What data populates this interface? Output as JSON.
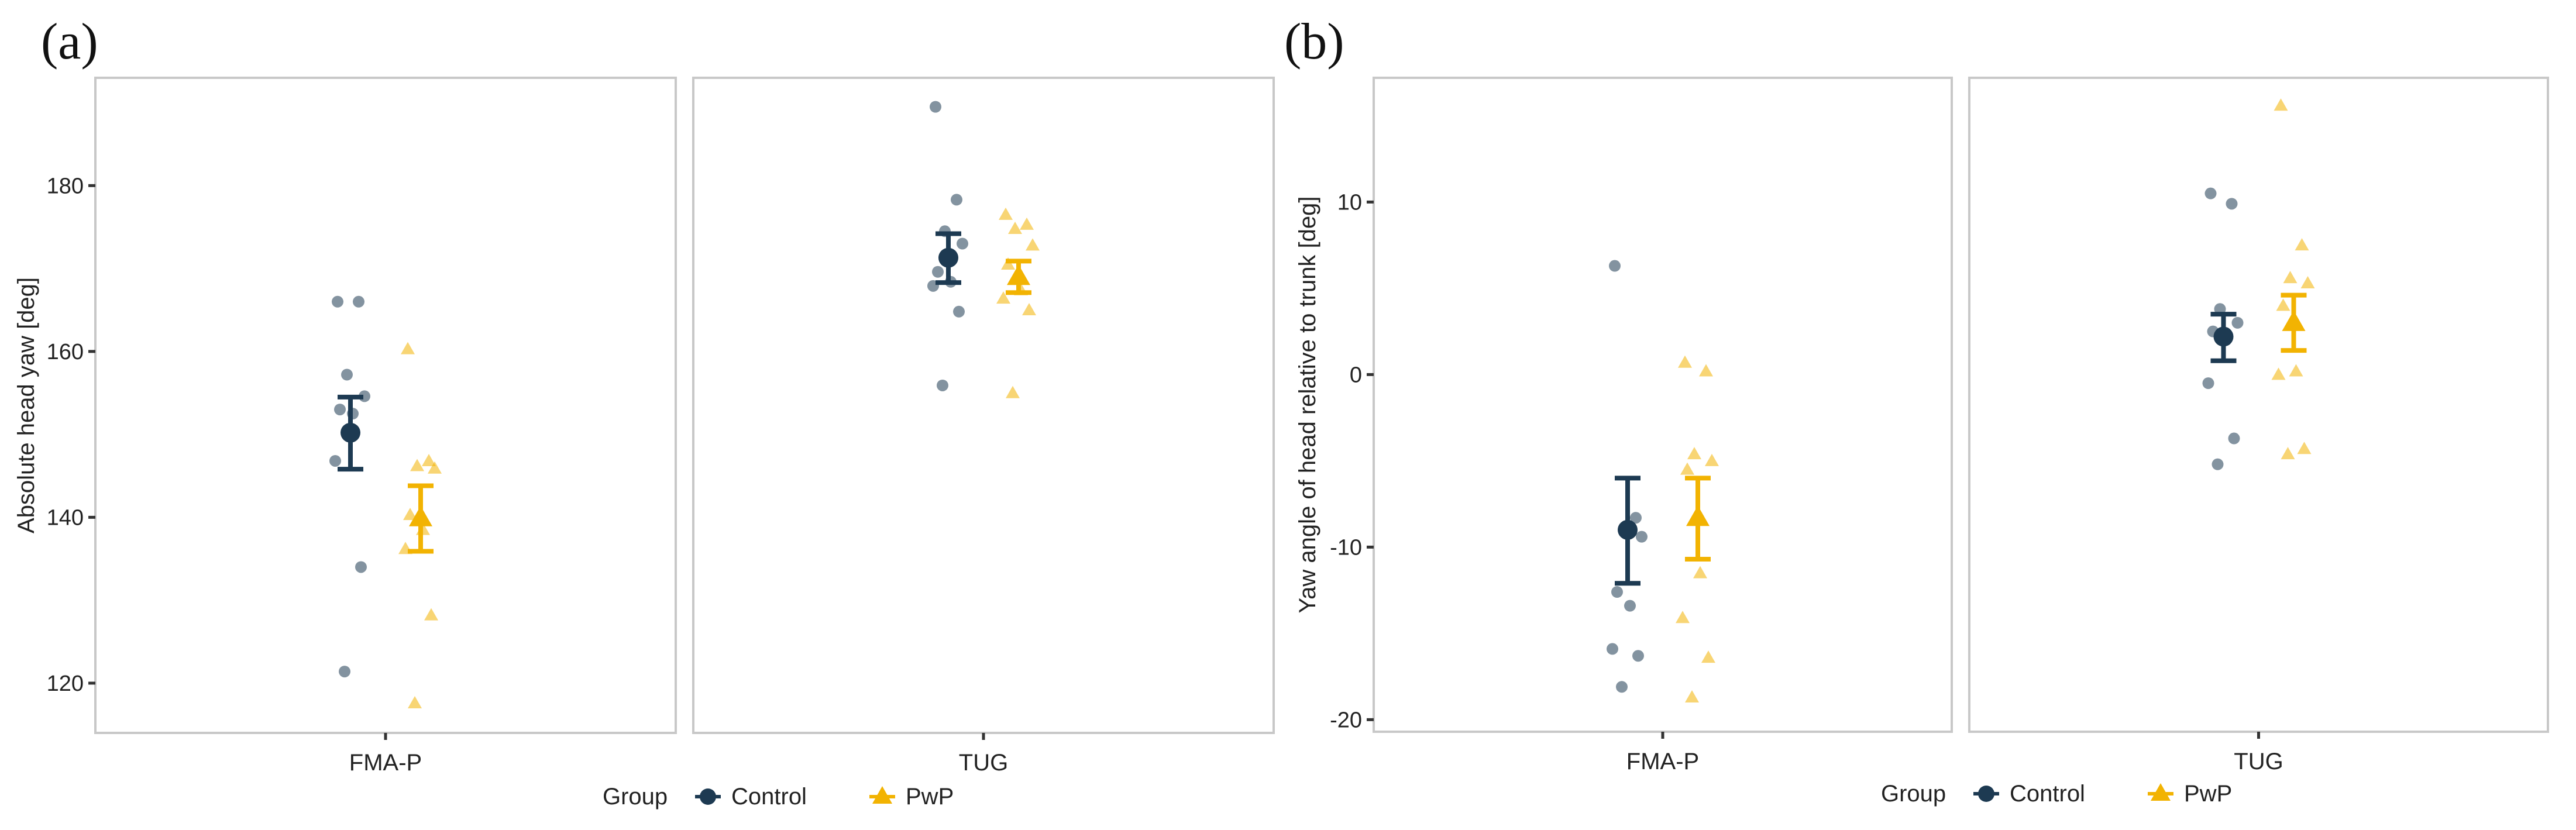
{
  "figure": {
    "panel_labels": [
      "(a)",
      "(b)"
    ],
    "colors": {
      "control": "#1d3a52",
      "pwp": "#f2b302",
      "panel_border": "#c8c8c8",
      "axis_text": "#222222"
    }
  },
  "chart_data": [
    {
      "type": "scatter",
      "panel_label": "(a)",
      "ylabel": "Absolute head yaw [deg]",
      "ylim": [
        114,
        193
      ],
      "yticks": [
        120,
        140,
        160,
        180
      ],
      "facets": [
        "FMA-P",
        "TUG"
      ],
      "legend": {
        "title": "Group",
        "entries": [
          "Control",
          "PwP"
        ],
        "position": "bottom"
      },
      "series": [
        {
          "name": "Control",
          "marker": "circle",
          "points": {
            "FMA-P": [
              166.0,
              166.0,
              157.2,
              154.6,
              153.0,
              152.5,
              146.8,
              134.0,
              121.4
            ],
            "TUG": [
              189.5,
              178.3,
              174.5,
              173.0,
              169.6,
              168.4,
              167.9,
              164.8,
              155.9
            ]
          },
          "summary": {
            "FMA-P": {
              "mean": 150.2,
              "lower": 145.8,
              "upper": 154.5
            },
            "TUG": {
              "mean": 171.3,
              "lower": 168.3,
              "upper": 174.2
            }
          }
        },
        {
          "name": "PwP",
          "marker": "triangle",
          "points": {
            "FMA-P": [
              160.3,
              146.8,
              146.2,
              145.9,
              140.3,
              138.5,
              136.2,
              128.2,
              117.6
            ],
            "TUG": [
              176.5,
              175.3,
              174.8,
              172.8,
              170.5,
              167.4,
              166.4,
              165.0,
              155.0
            ]
          },
          "summary": {
            "FMA-P": {
              "mean": 139.9,
              "lower": 135.9,
              "upper": 143.8
            },
            "TUG": {
              "mean": 169.0,
              "lower": 167.1,
              "upper": 170.9
            }
          }
        }
      ]
    },
    {
      "type": "scatter",
      "panel_label": "(b)",
      "ylabel": "Yaw angle of head relative to trunk [deg]",
      "ylim": [
        -20.7,
        17.2
      ],
      "yticks": [
        -20,
        -10,
        0,
        10
      ],
      "facets": [
        "FMA-P",
        "TUG"
      ],
      "legend": {
        "title": "Group",
        "entries": [
          "Control",
          "PwP"
        ],
        "position": "bottom"
      },
      "series": [
        {
          "name": "Control",
          "marker": "circle",
          "points": {
            "FMA-P": [
              6.3,
              -8.3,
              -9.0,
              -9.4,
              -12.6,
              -13.4,
              -15.9,
              -16.3,
              -18.1
            ],
            "TUG": [
              10.5,
              9.9,
              3.8,
              3.0,
              2.5,
              2.0,
              -0.5,
              -3.7,
              -5.2
            ]
          },
          "summary": {
            "FMA-P": {
              "mean": -9.0,
              "lower": -12.1,
              "upper": -6.0
            },
            "TUG": {
              "mean": 2.2,
              "lower": 0.8,
              "upper": 3.5
            }
          }
        },
        {
          "name": "PwP",
          "marker": "triangle",
          "points": {
            "FMA-P": [
              0.7,
              0.2,
              -4.6,
              -5.0,
              -5.5,
              -11.5,
              -14.1,
              -16.4,
              -18.7
            ],
            "TUG": [
              15.6,
              7.5,
              5.6,
              5.3,
              4.0,
              0.2,
              0.0,
              -4.3,
              -4.6
            ]
          },
          "summary": {
            "FMA-P": {
              "mean": -8.3,
              "lower": -10.7,
              "upper": -6.0
            },
            "TUG": {
              "mean": 3.0,
              "lower": 1.4,
              "upper": 4.6
            }
          }
        }
      ]
    }
  ]
}
